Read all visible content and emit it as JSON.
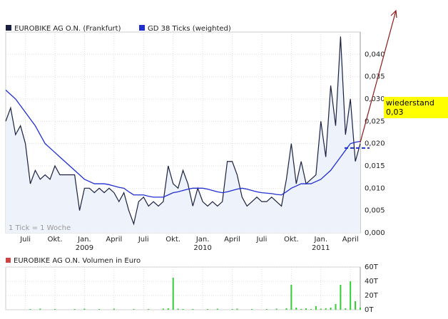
{
  "chart_data": [
    {
      "type": "line",
      "categories": [
        null,
        null,
        null,
        null,
        "Juli",
        null,
        null,
        null,
        null,
        null,
        "Okt.",
        null,
        null,
        null,
        null,
        null,
        "Jan.\n2009",
        null,
        null,
        null,
        null,
        null,
        "April",
        null,
        null,
        null,
        null,
        null,
        "Juli",
        null,
        null,
        null,
        null,
        null,
        "Okt.",
        null,
        null,
        null,
        null,
        null,
        "Jan.\n2010",
        null,
        null,
        null,
        null,
        null,
        "April",
        null,
        null,
        null,
        null,
        null,
        "Juli",
        null,
        null,
        null,
        null,
        null,
        "Okt.",
        null,
        null,
        null,
        null,
        null,
        "Jan.\n2011",
        null,
        null,
        null,
        null,
        null,
        "April",
        null,
        null
      ],
      "series": [
        {
          "name": "EUROBIKE AG O.N. (Frankfurt)",
          "color": "#1a2040",
          "values": [
            0.025,
            0.028,
            0.022,
            0.024,
            0.02,
            0.011,
            0.014,
            0.012,
            0.013,
            0.012,
            0.015,
            0.013,
            0.013,
            0.013,
            0.013,
            0.005,
            0.01,
            0.01,
            0.009,
            0.01,
            0.009,
            0.01,
            0.009,
            0.007,
            0.009,
            0.005,
            0.002,
            0.007,
            0.008,
            0.006,
            0.007,
            0.006,
            0.007,
            0.015,
            0.011,
            0.01,
            0.014,
            0.011,
            0.006,
            0.01,
            0.007,
            0.006,
            0.007,
            0.006,
            0.007,
            0.016,
            0.016,
            0.013,
            0.008,
            0.006,
            0.007,
            0.008,
            0.007,
            0.007,
            0.008,
            0.007,
            0.006,
            0.012,
            0.02,
            0.011,
            0.016,
            0.011,
            0.012,
            0.013,
            0.025,
            0.017,
            0.033,
            0.024,
            0.044,
            0.022,
            0.03,
            0.016,
            0.02
          ]
        },
        {
          "name": "GD 38 Ticks (weighted)",
          "color": "#1f2fd0",
          "values": [
            0.032,
            0.031,
            0.03,
            0.0285,
            0.027,
            0.0255,
            0.024,
            0.022,
            0.02,
            0.019,
            0.018,
            0.017,
            0.016,
            0.015,
            0.014,
            0.013,
            0.012,
            0.0115,
            0.011,
            0.011,
            0.011,
            0.0108,
            0.0105,
            0.0102,
            0.01,
            0.0092,
            0.0085,
            0.0085,
            0.0085,
            0.0082,
            0.008,
            0.008,
            0.008,
            0.0085,
            0.009,
            0.0092,
            0.0095,
            0.0098,
            0.01,
            0.01,
            0.01,
            0.0098,
            0.0095,
            0.0092,
            0.009,
            0.0092,
            0.0095,
            0.0098,
            0.01,
            0.0098,
            0.0095,
            0.0092,
            0.009,
            0.0089,
            0.0088,
            0.0086,
            0.0085,
            0.0092,
            0.01,
            0.0105,
            0.011,
            0.011,
            0.011,
            0.0115,
            0.012,
            0.013,
            0.014,
            0.0155,
            0.017,
            0.0185,
            0.02,
            0.0203,
            0.0205
          ]
        }
      ],
      "ylim": [
        0,
        0.045
      ],
      "yticks": [
        {
          "value": 0,
          "label": "0,000"
        },
        {
          "value": 0.005,
          "label": "0,005"
        },
        {
          "value": 0.01,
          "label": "0,010"
        },
        {
          "value": 0.015,
          "label": "0,015"
        },
        {
          "value": 0.02,
          "label": "0,020"
        },
        {
          "value": 0.025,
          "label": "0,025"
        },
        {
          "value": 0.03,
          "label": "0,030"
        },
        {
          "value": 0.035,
          "label": "0,035"
        },
        {
          "value": 0.04,
          "label": "0,040"
        }
      ],
      "grid": true,
      "support_level": 0.019,
      "annotations": [
        "1 Tick = 1 Woche",
        "wiederstand 0,03"
      ]
    },
    {
      "type": "bar",
      "series": [
        {
          "name": "EUROBIKE AG O.N. Volumen in Euro",
          "color": "#33cc33",
          "legend_color": "#cc4444",
          "values": [
            0,
            0,
            0,
            0,
            0,
            1000,
            0,
            1500,
            0,
            0,
            1000,
            0,
            0,
            0,
            1000,
            0,
            1500,
            0,
            0,
            1000,
            0,
            0,
            1500,
            0,
            0,
            0,
            1000,
            0,
            0,
            1000,
            0,
            0,
            1500,
            2000,
            45000,
            1500,
            1000,
            0,
            1000,
            0,
            0,
            1000,
            0,
            1500,
            0,
            0,
            1000,
            1500,
            0,
            0,
            1000,
            0,
            0,
            1000,
            0,
            1500,
            0,
            2000,
            35000,
            3000,
            1000,
            2000,
            1000,
            5000,
            1500,
            2000,
            3000,
            8000,
            35000,
            2000,
            40000,
            12000,
            3000
          ]
        }
      ],
      "ylim": [
        0,
        60000
      ],
      "yticks": [
        {
          "value": 0,
          "label": "0T"
        },
        {
          "value": 20000,
          "label": "20T"
        },
        {
          "value": 40000,
          "label": "40T"
        },
        {
          "value": 60000,
          "label": "60T"
        }
      ],
      "grid": true
    }
  ]
}
